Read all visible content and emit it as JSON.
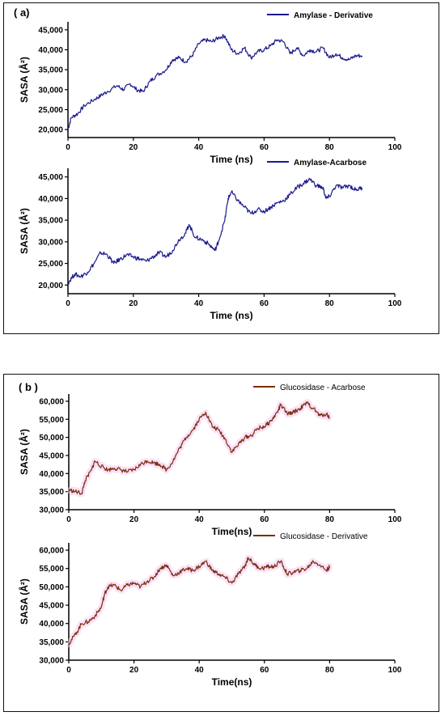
{
  "panels": {
    "a": {
      "label": "( a)"
    },
    "b": {
      "label": "( b )"
    }
  },
  "chart_data": [
    {
      "type": "line",
      "panel": "a",
      "color": "#1b1a8c",
      "xlabel": "Time (ns)",
      "ylabel": "SASA (Å²)",
      "xlim": [
        0,
        100
      ],
      "ylim": [
        18000,
        47000
      ],
      "xticks": [
        0,
        20,
        40,
        60,
        80,
        100
      ],
      "yticks": [
        20000,
        25000,
        30000,
        35000,
        40000,
        45000
      ],
      "legend_position": "top-right",
      "series": [
        {
          "name": "Amylase - Derivative",
          "points": [
            [
              0,
              20000
            ],
            [
              1,
              23000
            ],
            [
              3,
              24000
            ],
            [
              5,
              26000
            ],
            [
              8,
              27500
            ],
            [
              10,
              28500
            ],
            [
              12,
              29500
            ],
            [
              15,
              31000
            ],
            [
              17,
              30000
            ],
            [
              19,
              31500
            ],
            [
              21,
              30000
            ],
            [
              23,
              29500
            ],
            [
              25,
              32000
            ],
            [
              27,
              33500
            ],
            [
              30,
              35000
            ],
            [
              32,
              37500
            ],
            [
              34,
              38000
            ],
            [
              36,
              37000
            ],
            [
              38,
              38500
            ],
            [
              40,
              41500
            ],
            [
              42,
              42500
            ],
            [
              44,
              42000
            ],
            [
              46,
              43000
            ],
            [
              48,
              43500
            ],
            [
              50,
              40000
            ],
            [
              52,
              39000
            ],
            [
              54,
              40500
            ],
            [
              56,
              38000
            ],
            [
              58,
              39500
            ],
            [
              60,
              40000
            ],
            [
              62,
              41000
            ],
            [
              64,
              42500
            ],
            [
              66,
              42000
            ],
            [
              68,
              39000
            ],
            [
              70,
              40500
            ],
            [
              72,
              38500
            ],
            [
              74,
              40000
            ],
            [
              76,
              39500
            ],
            [
              78,
              40500
            ],
            [
              80,
              38000
            ],
            [
              82,
              39000
            ],
            [
              84,
              38000
            ],
            [
              86,
              37500
            ],
            [
              88,
              38500
            ],
            [
              90,
              38500
            ]
          ]
        }
      ]
    },
    {
      "type": "line",
      "panel": "a",
      "color": "#1b1a8c",
      "xlabel": "Time (ns)",
      "ylabel": "SASA (Å²)",
      "xlim": [
        0,
        100
      ],
      "ylim": [
        18000,
        47000
      ],
      "xticks": [
        0,
        20,
        40,
        60,
        80,
        100
      ],
      "yticks": [
        20000,
        25000,
        30000,
        35000,
        40000,
        45000
      ],
      "legend_position": "top-right",
      "series": [
        {
          "name": "Amylase-Acarbose",
          "points": [
            [
              0,
              20500
            ],
            [
              2,
              22500
            ],
            [
              4,
              22000
            ],
            [
              6,
              23000
            ],
            [
              8,
              25000
            ],
            [
              10,
              27500
            ],
            [
              12,
              27000
            ],
            [
              14,
              25000
            ],
            [
              16,
              26000
            ],
            [
              18,
              27000
            ],
            [
              20,
              26500
            ],
            [
              22,
              26000
            ],
            [
              24,
              25500
            ],
            [
              26,
              26500
            ],
            [
              28,
              27500
            ],
            [
              30,
              26500
            ],
            [
              32,
              28000
            ],
            [
              34,
              30500
            ],
            [
              36,
              32000
            ],
            [
              37,
              34000
            ],
            [
              39,
              31000
            ],
            [
              41,
              30500
            ],
            [
              43,
              29500
            ],
            [
              45,
              28000
            ],
            [
              46,
              30000
            ],
            [
              48,
              35000
            ],
            [
              49,
              40000
            ],
            [
              50,
              41500
            ],
            [
              52,
              39500
            ],
            [
              54,
              38000
            ],
            [
              56,
              36500
            ],
            [
              58,
              37500
            ],
            [
              60,
              37000
            ],
            [
              62,
              38000
            ],
            [
              64,
              39000
            ],
            [
              66,
              39500
            ],
            [
              68,
              41000
            ],
            [
              70,
              42500
            ],
            [
              72,
              43500
            ],
            [
              74,
              44500
            ],
            [
              76,
              43000
            ],
            [
              78,
              42500
            ],
            [
              79,
              40000
            ],
            [
              80,
              40500
            ],
            [
              82,
              43000
            ],
            [
              84,
              42500
            ],
            [
              86,
              43000
            ],
            [
              88,
              42000
            ],
            [
              90,
              42500
            ]
          ]
        }
      ]
    },
    {
      "type": "line",
      "panel": "b",
      "color": "#7a2e0e",
      "highlight_color": "#f6c8f0",
      "xlabel": "Time(ns)",
      "ylabel": "SASA (Å²)",
      "xlim": [
        0,
        100
      ],
      "ylim": [
        30000,
        62000
      ],
      "xticks": [
        0,
        20,
        40,
        60,
        80,
        100
      ],
      "yticks": [
        30000,
        35000,
        40000,
        45000,
        50000,
        55000,
        60000
      ],
      "legend_position": "top-right",
      "series": [
        {
          "name": "Glucosidase - Acarbose",
          "points": [
            [
              0,
              35500
            ],
            [
              2,
              35000
            ],
            [
              4,
              34500
            ],
            [
              5,
              38000
            ],
            [
              7,
              41000
            ],
            [
              8,
              43500
            ],
            [
              10,
              42000
            ],
            [
              12,
              41000
            ],
            [
              14,
              41500
            ],
            [
              16,
              41000
            ],
            [
              18,
              40500
            ],
            [
              20,
              41000
            ],
            [
              22,
              42500
            ],
            [
              24,
              43500
            ],
            [
              26,
              43000
            ],
            [
              28,
              42500
            ],
            [
              30,
              41000
            ],
            [
              32,
              43500
            ],
            [
              34,
              47000
            ],
            [
              36,
              50000
            ],
            [
              38,
              52000
            ],
            [
              40,
              55000
            ],
            [
              42,
              57000
            ],
            [
              44,
              53000
            ],
            [
              46,
              52000
            ],
            [
              48,
              49500
            ],
            [
              50,
              46000
            ],
            [
              52,
              48000
            ],
            [
              54,
              50000
            ],
            [
              56,
              50500
            ],
            [
              58,
              52500
            ],
            [
              60,
              53000
            ],
            [
              62,
              54500
            ],
            [
              64,
              57000
            ],
            [
              65,
              59000
            ],
            [
              67,
              56500
            ],
            [
              69,
              57000
            ],
            [
              71,
              58000
            ],
            [
              73,
              59500
            ],
            [
              75,
              58000
            ],
            [
              77,
              56000
            ],
            [
              79,
              56500
            ],
            [
              80,
              55500
            ]
          ]
        }
      ]
    },
    {
      "type": "line",
      "panel": "b",
      "color": "#7a2e0e",
      "highlight_color": "#f6c8f0",
      "xlabel": "Time(ns)",
      "ylabel": "SASA (Å²)",
      "xlim": [
        0,
        100
      ],
      "ylim": [
        30000,
        62000
      ],
      "xticks": [
        0,
        20,
        40,
        60,
        80,
        100
      ],
      "yticks": [
        30000,
        35000,
        40000,
        45000,
        50000,
        55000,
        60000
      ],
      "legend_position": "top-right",
      "series": [
        {
          "name": "Glucosidase - Derivative",
          "points": [
            [
              0,
              34500
            ],
            [
              2,
              37000
            ],
            [
              4,
              40000
            ],
            [
              6,
              40500
            ],
            [
              8,
              42000
            ],
            [
              10,
              44500
            ],
            [
              11,
              48000
            ],
            [
              12,
              50000
            ],
            [
              14,
              50500
            ],
            [
              16,
              49000
            ],
            [
              18,
              50500
            ],
            [
              20,
              51000
            ],
            [
              22,
              50000
            ],
            [
              24,
              51500
            ],
            [
              26,
              52500
            ],
            [
              28,
              55000
            ],
            [
              30,
              56000
            ],
            [
              32,
              53000
            ],
            [
              34,
              54000
            ],
            [
              36,
              55000
            ],
            [
              38,
              54500
            ],
            [
              40,
              55500
            ],
            [
              42,
              57000
            ],
            [
              44,
              54500
            ],
            [
              46,
              53500
            ],
            [
              48,
              52500
            ],
            [
              50,
              51000
            ],
            [
              52,
              53500
            ],
            [
              54,
              55500
            ],
            [
              55,
              58000
            ],
            [
              57,
              56000
            ],
            [
              59,
              55000
            ],
            [
              61,
              55500
            ],
            [
              63,
              55500
            ],
            [
              65,
              57000
            ],
            [
              67,
              53500
            ],
            [
              69,
              54000
            ],
            [
              71,
              54500
            ],
            [
              73,
              55000
            ],
            [
              75,
              57000
            ],
            [
              77,
              56000
            ],
            [
              79,
              54500
            ],
            [
              80,
              55500
            ]
          ]
        }
      ]
    }
  ]
}
